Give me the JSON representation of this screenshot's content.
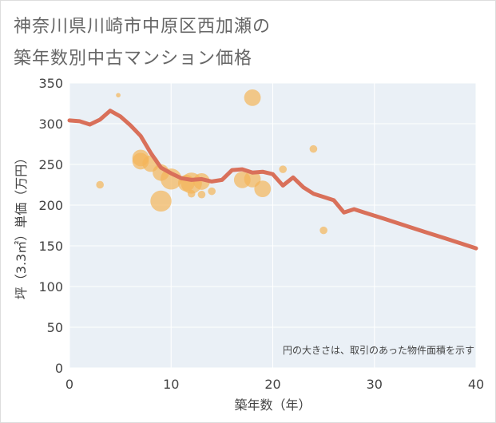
{
  "title": {
    "line1": "神奈川県川崎市中原区西加瀬の",
    "line2": "築年数別中古マンション価格"
  },
  "note": "円の大きさは、取引のあった物件面積を示す",
  "colors": {
    "line": "#d9705a",
    "bubble": "#f3b55a",
    "plot_bg": "#eaf0f6",
    "grid": "#ffffff"
  },
  "chart_data": {
    "type": "scatter",
    "xlabel": "築年数（年）",
    "ylabel": "坪（3.3㎡）単価（万円）",
    "xlim": [
      0,
      40
    ],
    "ylim": [
      0,
      350
    ],
    "x_ticks": [
      "0",
      "10",
      "20",
      "30",
      "40"
    ],
    "y_ticks": [
      "0",
      "50",
      "100",
      "150",
      "200",
      "250",
      "300",
      "350"
    ],
    "grid": true,
    "series": [
      {
        "kind": "bubble",
        "points": [
          {
            "x": 3,
            "y": 225,
            "size": 1
          },
          {
            "x": 4.8,
            "y": 335,
            "size": 0.3
          },
          {
            "x": 7,
            "y": 258,
            "size": 3
          },
          {
            "x": 7,
            "y": 254,
            "size": 3
          },
          {
            "x": 8,
            "y": 251,
            "size": 3
          },
          {
            "x": 9,
            "y": 240,
            "size": 3
          },
          {
            "x": 9,
            "y": 205,
            "size": 4
          },
          {
            "x": 10,
            "y": 232,
            "size": 4
          },
          {
            "x": 11.5,
            "y": 227,
            "size": 3
          },
          {
            "x": 12,
            "y": 227,
            "size": 4
          },
          {
            "x": 12,
            "y": 214,
            "size": 1
          },
          {
            "x": 13,
            "y": 229,
            "size": 3
          },
          {
            "x": 13,
            "y": 213,
            "size": 1
          },
          {
            "x": 14,
            "y": 217,
            "size": 1
          },
          {
            "x": 17,
            "y": 231,
            "size": 3
          },
          {
            "x": 18,
            "y": 332,
            "size": 3
          },
          {
            "x": 18,
            "y": 232,
            "size": 3
          },
          {
            "x": 19,
            "y": 220,
            "size": 3
          },
          {
            "x": 21,
            "y": 244,
            "size": 1
          },
          {
            "x": 24,
            "y": 269,
            "size": 1
          },
          {
            "x": 25,
            "y": 169,
            "size": 1
          }
        ]
      },
      {
        "kind": "line",
        "x": [
          0,
          1,
          2,
          3,
          4,
          5,
          6,
          7,
          8,
          9,
          10,
          11,
          12,
          13,
          14,
          15,
          16,
          17,
          18,
          19,
          20,
          21,
          22,
          23,
          24,
          25,
          26,
          27,
          28,
          29,
          30,
          31,
          32,
          33,
          34,
          35,
          36,
          37,
          38,
          39,
          40
        ],
        "y": [
          304,
          303,
          299,
          305,
          316,
          309,
          298,
          285,
          264,
          246,
          239,
          233,
          231,
          232,
          229,
          231,
          243,
          244,
          240,
          241,
          238,
          224,
          234,
          222,
          214,
          210,
          206,
          191,
          195,
          191,
          187,
          183,
          179,
          175,
          171,
          167,
          163,
          159,
          155,
          151,
          147
        ]
      }
    ]
  }
}
